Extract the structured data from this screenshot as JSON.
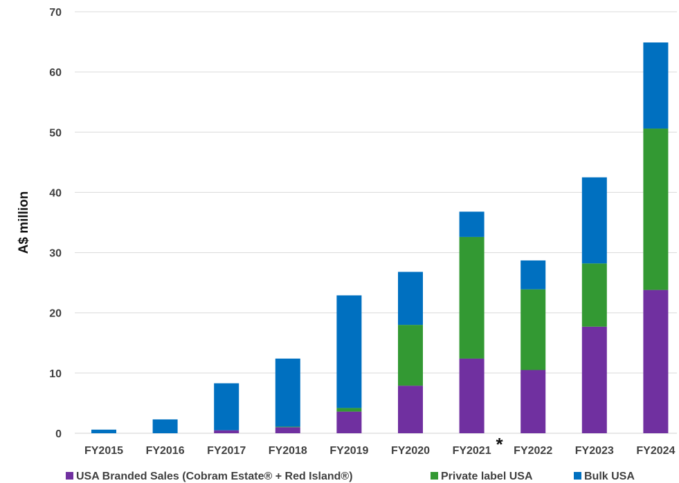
{
  "chart_data": {
    "type": "bar",
    "stacked": true,
    "ylabel": "A$ million",
    "ylim": [
      0,
      70
    ],
    "yticks": [
      0,
      10,
      20,
      30,
      40,
      50,
      60,
      70
    ],
    "grid": true,
    "legend_position": "bottom",
    "categories": [
      "FY2015",
      "FY2016",
      "FY2017",
      "FY2018",
      "FY2019",
      "FY2020",
      "FY2021",
      "FY2022",
      "FY2023",
      "FY2024"
    ],
    "category_note": {
      "category": "FY2021",
      "mark": "*"
    },
    "series": [
      {
        "name": "USA Branded Sales (Cobram Estate® + Red Island®)",
        "color": "#7030a0",
        "values": [
          0,
          0,
          0.5,
          1.0,
          3.6,
          7.9,
          12.4,
          10.5,
          17.7,
          23.8
        ]
      },
      {
        "name": "Private label USA",
        "color": "#339933",
        "values": [
          0,
          0,
          0,
          0.1,
          0.6,
          10.1,
          20.2,
          13.4,
          10.5,
          26.8
        ]
      },
      {
        "name": "Bulk USA",
        "color": "#0070c0",
        "values": [
          0.6,
          2.3,
          7.8,
          11.3,
          18.7,
          8.8,
          4.2,
          4.8,
          14.3,
          14.3
        ]
      }
    ]
  }
}
